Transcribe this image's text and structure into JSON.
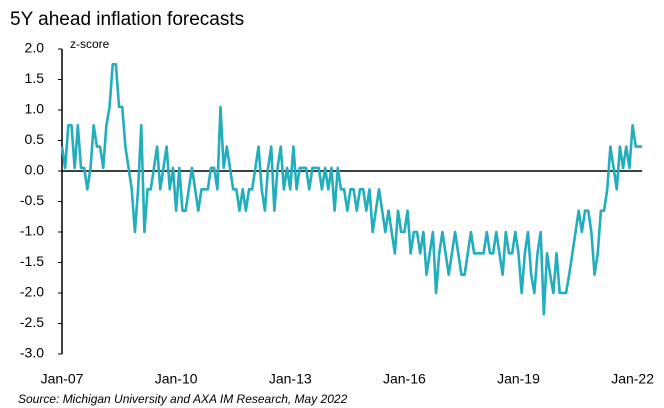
{
  "chart_data": {
    "type": "line",
    "title": "5Y ahead inflation forecasts",
    "y_label": "z-score",
    "source": "Source: Michigan University and AXA IM Research, May 2022",
    "categories": [
      "Jan-07",
      null,
      null,
      null,
      null,
      null,
      null,
      null,
      null,
      null,
      null,
      null,
      null,
      null,
      null,
      null,
      null,
      null,
      null,
      null,
      null,
      null,
      null,
      null,
      null,
      null,
      null,
      null,
      null,
      null,
      null,
      null,
      null,
      null,
      null,
      null,
      "Jan-10",
      null,
      null,
      null,
      null,
      null,
      null,
      null,
      null,
      null,
      null,
      null,
      null,
      null,
      null,
      null,
      null,
      null,
      null,
      null,
      null,
      null,
      null,
      null,
      null,
      null,
      null,
      null,
      null,
      null,
      null,
      null,
      null,
      null,
      null,
      null,
      "Jan-13",
      null,
      null,
      null,
      null,
      null,
      null,
      null,
      null,
      null,
      null,
      null,
      null,
      null,
      null,
      null,
      null,
      null,
      null,
      null,
      null,
      null,
      null,
      null,
      null,
      null,
      null,
      null,
      null,
      null,
      null,
      null,
      null,
      null,
      null,
      null,
      "Jan-16",
      null,
      null,
      null,
      null,
      null,
      null,
      null,
      null,
      null,
      null,
      null,
      null,
      null,
      null,
      null,
      null,
      null,
      null,
      null,
      null,
      null,
      null,
      null,
      null,
      null,
      null,
      null,
      null,
      null,
      null,
      null,
      null,
      null,
      null,
      null,
      "Jan-19",
      null,
      null,
      null,
      null,
      null,
      null,
      null,
      null,
      null,
      null,
      null,
      null,
      null,
      null,
      null,
      null,
      null,
      null,
      null,
      null,
      null,
      null,
      null,
      null,
      null,
      null,
      null,
      null,
      null,
      null,
      null,
      null,
      null,
      null,
      null,
      "Jan-22",
      null,
      null,
      null
    ],
    "series": [
      {
        "name": "5Y ahead inflation forecasts",
        "color": "#22aebd",
        "values": [
          0.4,
          0.05,
          0.75,
          0.75,
          0.05,
          0.75,
          0.05,
          0.05,
          -0.3,
          0.05,
          0.75,
          0.4,
          0.4,
          0.05,
          0.75,
          1.05,
          1.75,
          1.75,
          1.05,
          1.05,
          0.4,
          0.05,
          -0.3,
          -1.0,
          -0.3,
          0.75,
          -1.0,
          -0.3,
          -0.3,
          0.05,
          0.4,
          -0.3,
          0.05,
          0.4,
          -0.3,
          0.05,
          -0.65,
          0.05,
          -0.65,
          -0.65,
          -0.3,
          0.05,
          -0.3,
          -0.65,
          -0.3,
          -0.3,
          -0.3,
          0.05,
          0.05,
          -0.3,
          1.05,
          0.05,
          0.4,
          0.05,
          -0.3,
          -0.3,
          -0.65,
          -0.3,
          -0.65,
          -0.3,
          -0.3,
          0.05,
          0.4,
          -0.3,
          -0.65,
          0.05,
          0.4,
          -0.65,
          0.05,
          0.4,
          -0.3,
          0.05,
          -0.3,
          0.4,
          -0.3,
          0.05,
          0.05,
          0.05,
          -0.3,
          0.05,
          0.05,
          0.05,
          -0.3,
          0.05,
          -0.3,
          0.05,
          -0.65,
          0.05,
          -0.3,
          -0.3,
          -0.65,
          -0.3,
          -0.3,
          -0.65,
          -0.3,
          -0.3,
          -0.65,
          -0.3,
          -1.0,
          -0.65,
          -0.3,
          -0.65,
          -1.0,
          -0.65,
          -1.0,
          -1.35,
          -0.65,
          -1.0,
          -1.0,
          -0.65,
          -1.35,
          -1.0,
          -1.0,
          -1.35,
          -1.0,
          -1.7,
          -1.35,
          -1.0,
          -2.0,
          -1.35,
          -1.0,
          -1.35,
          -1.7,
          -1.35,
          -1.0,
          -1.35,
          -1.7,
          -1.7,
          -1.35,
          -1.0,
          -1.35,
          -1.35,
          -1.35,
          -1.35,
          -1.0,
          -1.35,
          -1.35,
          -1.0,
          -1.35,
          -1.7,
          -1.0,
          -1.35,
          -1.35,
          -1.0,
          -1.35,
          -2.0,
          -1.35,
          -1.0,
          -1.7,
          -2.0,
          -1.35,
          -1.0,
          -2.35,
          -1.35,
          -1.7,
          -2.0,
          -1.35,
          -2.0,
          -2.0,
          -2.0,
          -1.7,
          -1.35,
          -1.0,
          -0.65,
          -1.0,
          -0.65,
          -0.65,
          -1.0,
          -1.7,
          -1.35,
          -0.65,
          -0.65,
          -0.3,
          0.4,
          0.05,
          -0.3,
          0.4,
          0.05,
          0.4,
          0.05,
          0.75,
          0.4,
          0.4,
          0.4
        ]
      }
    ],
    "ylim": [
      -3,
      2
    ],
    "yticks": [
      {
        "value": 2,
        "label": "2.0"
      },
      1.5,
      {
        "value": 1,
        "label": "1.0"
      },
      0.5,
      {
        "value": 0,
        "label": "0.0"
      },
      -0.5,
      {
        "value": -1,
        "label": "-1.0"
      },
      -1.5,
      {
        "value": -2,
        "label": "-2.0"
      },
      -2.5,
      {
        "value": -3,
        "label": "-3.0"
      }
    ],
    "grid": false
  }
}
